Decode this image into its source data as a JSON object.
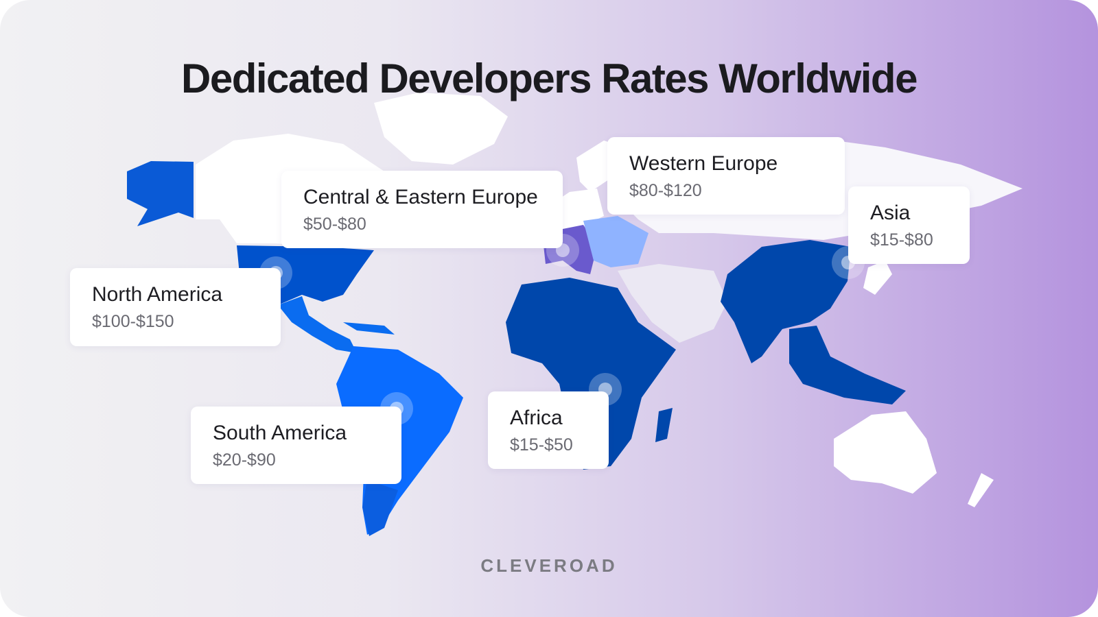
{
  "title": "Dedicated Developers Rates Worldwide",
  "regions": [
    {
      "name": "Central & Eastern Europe",
      "rate": "$50-$80"
    },
    {
      "name": "Western Europe",
      "rate": "$80-$120"
    },
    {
      "name": "Asia",
      "rate": "$15-$80"
    },
    {
      "name": "North America",
      "rate": "$100-$150"
    },
    {
      "name": "South America",
      "rate": "$20-$90"
    },
    {
      "name": "Africa",
      "rate": "$15-$50"
    }
  ],
  "brand": "CLEVEROAD"
}
